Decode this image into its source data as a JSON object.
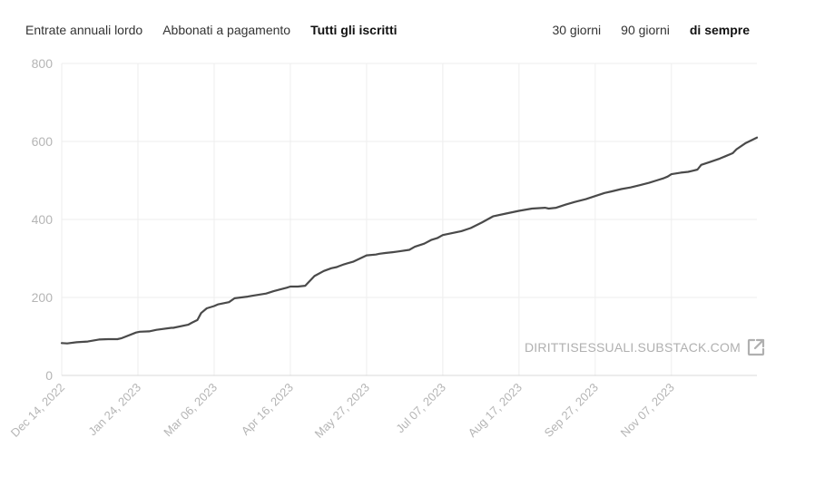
{
  "tabs": [
    {
      "label": "Entrate annuali lordo",
      "active": false
    },
    {
      "label": "Abbonati a pagamento",
      "active": false
    },
    {
      "label": "Tutti gli iscritti",
      "active": true
    }
  ],
  "ranges": [
    {
      "label": "30 giorni",
      "active": false
    },
    {
      "label": "90 giorni",
      "active": false
    },
    {
      "label": "di sempre",
      "active": true
    }
  ],
  "watermark": {
    "text": "DIRITTISESSUALI.SUBSTACK.COM",
    "icon": "external-link-icon"
  },
  "colors": {
    "line": "#4a4a4a",
    "tick": "#b5b5b5",
    "grid": "#eeeeee"
  },
  "chart_data": {
    "type": "line",
    "title": "",
    "xlabel": "",
    "ylabel": "",
    "ylim": [
      0,
      800
    ],
    "yticks": [
      0,
      200,
      400,
      600,
      800
    ],
    "xlim": [
      "2022-12-14",
      "2023-12-23"
    ],
    "xticks": [
      "2022-12-14",
      "2023-01-24",
      "2023-03-06",
      "2023-04-16",
      "2023-05-27",
      "2023-07-07",
      "2023-08-17",
      "2023-09-27",
      "2023-11-07"
    ],
    "xtick_labels": [
      "Dec 14, 2022",
      "Jan 24, 2023",
      "Mar 06, 2023",
      "Apr 16, 2023",
      "May 27, 2023",
      "Jul 07, 2023",
      "Aug 17, 2023",
      "Sep 27, 2023",
      "Nov 07, 2023"
    ],
    "grid": true,
    "legend": "none",
    "series": [
      {
        "x": [
          "2022-12-14",
          "2022-12-17",
          "2022-12-22",
          "2022-12-28",
          "2023-01-03",
          "2023-01-08",
          "2023-01-13",
          "2023-01-15",
          "2023-01-23",
          "2023-01-25",
          "2023-01-30",
          "2023-02-03",
          "2023-02-11",
          "2023-02-12",
          "2023-02-20",
          "2023-02-22",
          "2023-02-25",
          "2023-02-27",
          "2023-03-02",
          "2023-03-06",
          "2023-03-08",
          "2023-03-14",
          "2023-03-17",
          "2023-03-24",
          "2023-03-26",
          "2023-04-03",
          "2023-04-07",
          "2023-04-10",
          "2023-04-14",
          "2023-04-16",
          "2023-04-20",
          "2023-04-24",
          "2023-04-29",
          "2023-05-04",
          "2023-05-08",
          "2023-05-11",
          "2023-05-12",
          "2023-05-15",
          "2023-05-20",
          "2023-05-27",
          "2023-06-01",
          "2023-06-03",
          "2023-06-06",
          "2023-06-10",
          "2023-06-13",
          "2023-06-19",
          "2023-06-22",
          "2023-06-27",
          "2023-07-01",
          "2023-07-04",
          "2023-07-07",
          "2023-07-12",
          "2023-07-17",
          "2023-07-22",
          "2023-07-28",
          "2023-08-03",
          "2023-08-10",
          "2023-08-17",
          "2023-08-24",
          "2023-08-31",
          "2023-09-02",
          "2023-09-06",
          "2023-09-11",
          "2023-09-16",
          "2023-09-22",
          "2023-09-27",
          "2023-10-02",
          "2023-10-06",
          "2023-10-11",
          "2023-10-16",
          "2023-10-21",
          "2023-10-26",
          "2023-10-30",
          "2023-11-03",
          "2023-11-05",
          "2023-11-07",
          "2023-11-12",
          "2023-11-16",
          "2023-11-21",
          "2023-11-23",
          "2023-11-28",
          "2023-12-03",
          "2023-12-06",
          "2023-12-10",
          "2023-12-12",
          "2023-12-17",
          "2023-12-23"
        ],
        "values": [
          83,
          82,
          85,
          87,
          92,
          93,
          93,
          95,
          110,
          112,
          113,
          117,
          122,
          122,
          130,
          135,
          142,
          160,
          172,
          178,
          182,
          188,
          198,
          202,
          204,
          210,
          216,
          220,
          225,
          228,
          228,
          230,
          255,
          268,
          275,
          278,
          280,
          285,
          292,
          308,
          310,
          312,
          314,
          316,
          318,
          322,
          330,
          338,
          348,
          352,
          360,
          365,
          370,
          378,
          392,
          408,
          415,
          422,
          428,
          430,
          428,
          430,
          438,
          445,
          452,
          460,
          468,
          472,
          478,
          482,
          488,
          494,
          500,
          506,
          510,
          516,
          520,
          522,
          528,
          540,
          548,
          556,
          562,
          570,
          580,
          596,
          610
        ]
      }
    ]
  }
}
